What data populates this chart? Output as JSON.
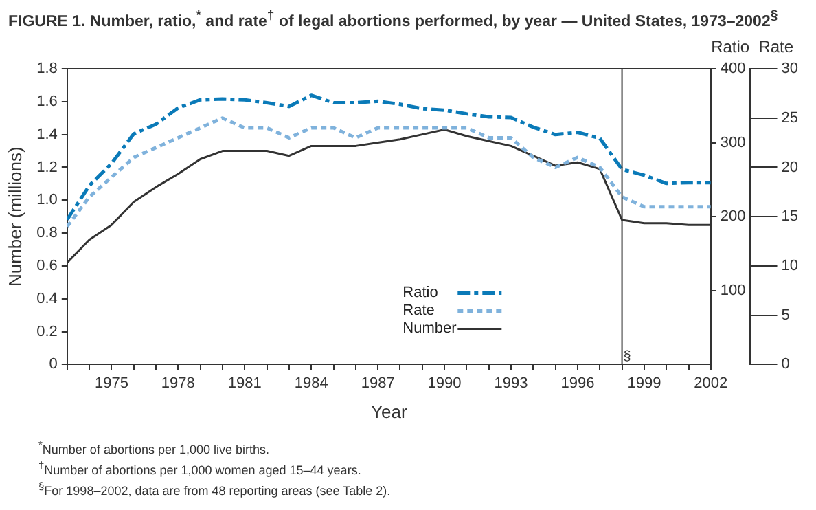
{
  "chart_data": {
    "type": "line",
    "title": "FIGURE 1. Number, ratio,$^{*}$ and rate$^{†}$ of legal abortions performed, by year — United States, 1973–2002$^{§}$",
    "xlabel": "Year",
    "ylabel": "Number (millions)",
    "y2label": "Ratio",
    "y3label": "Rate",
    "x": [
      1973,
      1974,
      1975,
      1976,
      1977,
      1978,
      1979,
      1980,
      1981,
      1982,
      1983,
      1984,
      1985,
      1986,
      1987,
      1988,
      1989,
      1990,
      1991,
      1992,
      1993,
      1994,
      1995,
      1996,
      1997,
      1998,
      1999,
      2000,
      2001,
      2002
    ],
    "series": [
      {
        "name": "Ratio",
        "color": "#0a7ab8",
        "axis": "y2",
        "line_style": "dashed",
        "values": [
          196,
          242,
          272,
          312,
          325,
          347,
          358,
          359,
          358,
          354,
          349,
          364,
          354,
          354,
          356,
          352,
          346,
          344,
          339,
          335,
          334,
          321,
          311,
          314,
          306,
          264,
          256,
          245,
          246,
          246
        ]
      },
      {
        "name": "Rate",
        "color": "#7fb2dc",
        "axis": "y3",
        "line_style": "dotted",
        "values": [
          14,
          17,
          19,
          21,
          22,
          23,
          24,
          25,
          24,
          24,
          23,
          24,
          24,
          23,
          24,
          24,
          24,
          24,
          24,
          23,
          23,
          21,
          20,
          21,
          20,
          17,
          16,
          16,
          16,
          16
        ]
      },
      {
        "name": "Number",
        "color": "#333333",
        "line_style": "solid",
        "values": [
          0.62,
          0.76,
          0.85,
          0.99,
          1.08,
          1.16,
          1.25,
          1.3,
          1.3,
          1.3,
          1.27,
          1.33,
          1.33,
          1.33,
          1.35,
          1.37,
          1.4,
          1.43,
          1.39,
          1.36,
          1.33,
          1.27,
          1.21,
          1.23,
          1.19,
          0.88,
          0.86,
          0.86,
          0.85,
          0.85
        ]
      }
    ],
    "xlim": [
      1973,
      2002
    ],
    "xticks": [
      {
        "value": 1973,
        "label": null
      },
      {
        "value": 1974,
        "label": null
      },
      1975,
      {
        "value": 1976,
        "label": null
      },
      {
        "value": 1977,
        "label": null
      },
      1978,
      {
        "value": 1979,
        "label": null
      },
      {
        "value": 1980,
        "label": null
      },
      1981,
      {
        "value": 1982,
        "label": null
      },
      {
        "value": 1983,
        "label": null
      },
      1984,
      {
        "value": 1985,
        "label": null
      },
      {
        "value": 1986,
        "label": null
      },
      1987,
      {
        "value": 1988,
        "label": null
      },
      {
        "value": 1989,
        "label": null
      },
      1990,
      {
        "value": 1991,
        "label": null
      },
      {
        "value": 1992,
        "label": null
      },
      1993,
      {
        "value": 1994,
        "label": null
      },
      {
        "value": 1995,
        "label": null
      },
      1996,
      {
        "value": 1997,
        "label": null
      },
      {
        "value": 1998,
        "label": null
      },
      1999,
      {
        "value": 2000,
        "label": null
      },
      {
        "value": 2001,
        "label": null
      },
      2002
    ],
    "ylim": [
      0,
      1.8
    ],
    "yticks": [
      0,
      0.2,
      0.4,
      0.6,
      0.8,
      {
        "value": 1,
        "label": "1.0"
      },
      1.2,
      1.4,
      1.6,
      1.8
    ],
    "y2lim": [
      0,
      400
    ],
    "y2ticks": [
      100,
      200,
      300,
      400
    ],
    "y3lim": [
      0,
      30
    ],
    "y3ticks": [
      0,
      5,
      10,
      15,
      20,
      25,
      30
    ],
    "ref_lines": [
      {
        "axis": "x",
        "value": 1998,
        "label": "§",
        "color": "#333333"
      }
    ],
    "legend": "bottom",
    "grid": false,
    "annotations": [
      "$^{*}$Number of abortions per 1,000 live births.",
      "$^{†}$Number of abortions per 1,000 women aged 15–44 years.",
      "$^{§}$For 1998–2002, data are from 48 reporting areas (see Table 2)."
    ]
  }
}
